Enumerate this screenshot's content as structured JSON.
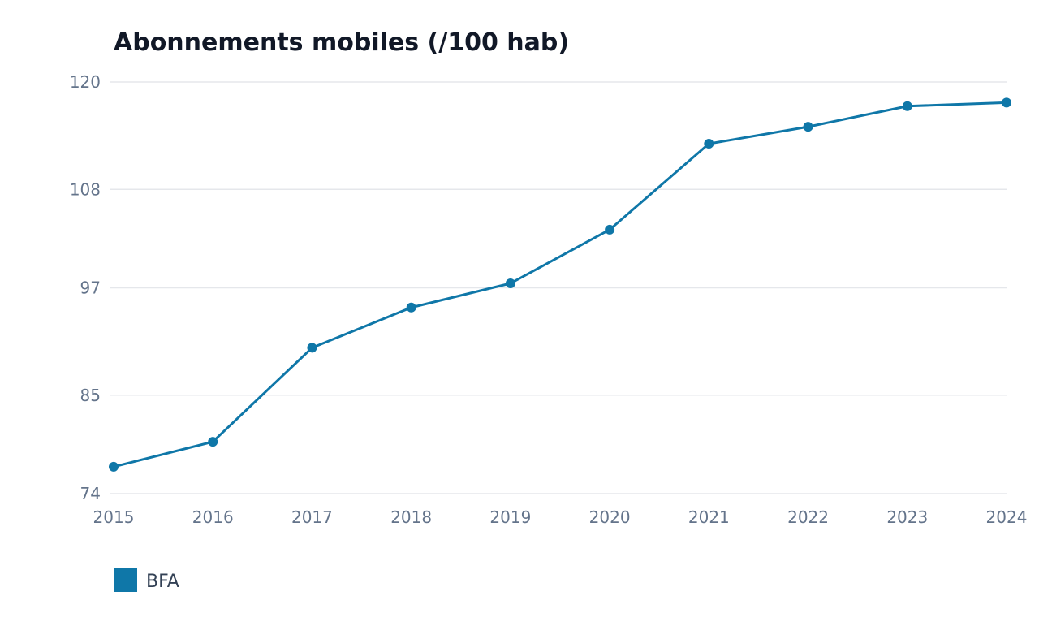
{
  "chart_data": {
    "type": "line",
    "title": "Abonnements mobiles (/100 hab)",
    "xlabel": "",
    "ylabel": "",
    "x": [
      "2015",
      "2016",
      "2017",
      "2018",
      "2019",
      "2020",
      "2021",
      "2022",
      "2023",
      "2024"
    ],
    "series": [
      {
        "name": "BFA",
        "color": "#0f77a8",
        "values": [
          77.0,
          79.8,
          90.3,
          94.8,
          97.5,
          103.5,
          113.1,
          115.0,
          117.3,
          117.7
        ]
      }
    ],
    "ylim": [
      74,
      120
    ],
    "yticks": [
      "74",
      "85",
      "97",
      "108",
      "120"
    ],
    "grid": true,
    "legend_position": "bottom-left"
  }
}
